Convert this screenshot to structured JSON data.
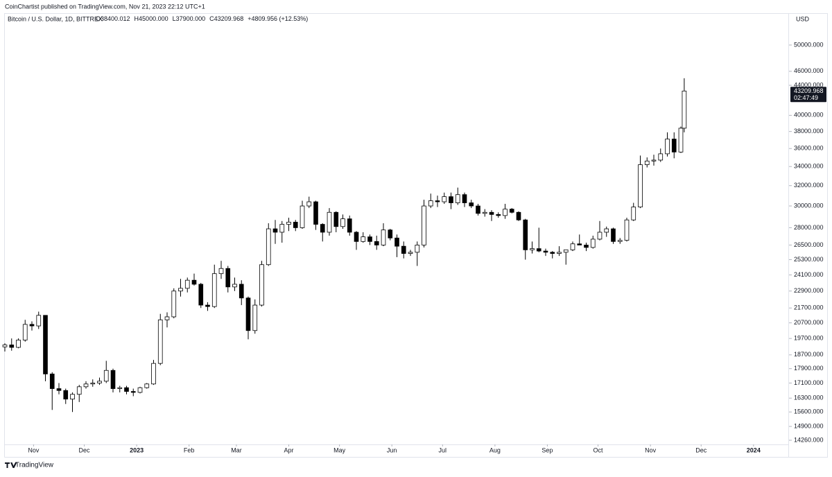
{
  "chart_data": {
    "type": "candlestick",
    "published": "CoinChartist published on TradingView.com, Nov 21, 2023 22:12 UTC+1",
    "title": "Bitcoin / U.S. Dollar, 1D, BITTREX",
    "legend_values": [
      "O38400.012",
      "H45000.000",
      "L37900.000",
      "C43209.968",
      "+4809.956 (+12.53%)"
    ],
    "currency": "USD",
    "countdown": "02:47:49",
    "brand": "TradingView",
    "log_scale": true,
    "grid": false,
    "up_color": "#ffffff",
    "down_color": "#000000",
    "border_color": "#000000",
    "ylim": [
      14073,
      55200
    ],
    "yticks": [
      {
        "value": 50000,
        "label": "50000.000"
      },
      {
        "value": 46000,
        "label": "46000.000"
      },
      {
        "value": 44000,
        "label": "44000.000"
      },
      {
        "value": 40000,
        "label": "40000.000"
      },
      {
        "value": 38000,
        "label": "38000.000"
      },
      {
        "value": 36000,
        "label": "36000.000"
      },
      {
        "value": 34000,
        "label": "34000.000"
      },
      {
        "value": 32000,
        "label": "32000.000"
      },
      {
        "value": 30000,
        "label": "30000.000"
      },
      {
        "value": 28000,
        "label": "28000.000"
      },
      {
        "value": 26500,
        "label": "26500.000"
      },
      {
        "value": 25300,
        "label": "25300.000"
      },
      {
        "value": 24100,
        "label": "24100.000"
      },
      {
        "value": 22900,
        "label": "22900.000"
      },
      {
        "value": 21700,
        "label": "21700.000"
      },
      {
        "value": 20700,
        "label": "20700.000"
      },
      {
        "value": 19700,
        "label": "19700.000"
      },
      {
        "value": 18700,
        "label": "18700.000"
      },
      {
        "value": 17900,
        "label": "17900.000"
      },
      {
        "value": 17100,
        "label": "17100.000"
      },
      {
        "value": 16300,
        "label": "16300.000"
      },
      {
        "value": 15600,
        "label": "15600.000"
      },
      {
        "value": 14900,
        "label": "14900.000"
      },
      {
        "value": 14260,
        "label": "14260.000"
      }
    ],
    "xlim": [
      "2022-10-15",
      "2024-01-22"
    ],
    "xticks": [
      {
        "value": "2022-11-01",
        "label": "Nov"
      },
      {
        "value": "2022-12-01",
        "label": "Dec"
      },
      {
        "value": "2023-01-01",
        "label": "2023"
      },
      {
        "value": "2023-02-01",
        "label": "Feb"
      },
      {
        "value": "2023-03-01",
        "label": "Mar"
      },
      {
        "value": "2023-04-01",
        "label": "Apr"
      },
      {
        "value": "2023-05-01",
        "label": "May"
      },
      {
        "value": "2023-06-01",
        "label": "Jun"
      },
      {
        "value": "2023-07-01",
        "label": "Jul"
      },
      {
        "value": "2023-08-01",
        "label": "Aug"
      },
      {
        "value": "2023-09-01",
        "label": "Sep"
      },
      {
        "value": "2023-10-01",
        "label": "Oct"
      },
      {
        "value": "2023-11-01",
        "label": "Nov"
      },
      {
        "value": "2023-12-01",
        "label": "Dec"
      },
      {
        "value": "2024-01-01",
        "label": "2024"
      }
    ],
    "x": [
      "2022-10-15",
      "2022-10-19",
      "2022-10-23",
      "2022-10-27",
      "2022-10-31",
      "2022-11-04",
      "2022-11-08",
      "2022-11-12",
      "2022-11-16",
      "2022-11-20",
      "2022-11-24",
      "2022-11-28",
      "2022-12-02",
      "2022-12-06",
      "2022-12-10",
      "2022-12-14",
      "2022-12-18",
      "2022-12-22",
      "2022-12-26",
      "2022-12-30",
      "2023-01-03",
      "2023-01-07",
      "2023-01-11",
      "2023-01-15",
      "2023-01-19",
      "2023-01-23",
      "2023-01-27",
      "2023-01-31",
      "2023-02-04",
      "2023-02-08",
      "2023-02-12",
      "2023-02-16",
      "2023-02-20",
      "2023-02-24",
      "2023-02-28",
      "2023-03-04",
      "2023-03-08",
      "2023-03-12",
      "2023-03-16",
      "2023-03-20",
      "2023-03-24",
      "2023-03-28",
      "2023-04-01",
      "2023-04-05",
      "2023-04-09",
      "2023-04-13",
      "2023-04-17",
      "2023-04-21",
      "2023-04-25",
      "2023-04-29",
      "2023-05-03",
      "2023-05-07",
      "2023-05-11",
      "2023-05-15",
      "2023-05-19",
      "2023-05-23",
      "2023-05-27",
      "2023-05-31",
      "2023-06-04",
      "2023-06-08",
      "2023-06-12",
      "2023-06-16",
      "2023-06-20",
      "2023-06-24",
      "2023-06-28",
      "2023-07-02",
      "2023-07-06",
      "2023-07-10",
      "2023-07-14",
      "2023-07-18",
      "2023-07-22",
      "2023-07-26",
      "2023-07-30",
      "2023-08-03",
      "2023-08-07",
      "2023-08-11",
      "2023-08-15",
      "2023-08-19",
      "2023-08-23",
      "2023-08-27",
      "2023-08-31",
      "2023-09-04",
      "2023-09-08",
      "2023-09-12",
      "2023-09-16",
      "2023-09-20",
      "2023-09-24",
      "2023-09-28",
      "2023-10-02",
      "2023-10-06",
      "2023-10-10",
      "2023-10-14",
      "2023-10-18",
      "2023-10-22",
      "2023-10-26",
      "2023-10-30",
      "2023-11-03",
      "2023-11-07",
      "2023-11-11",
      "2023-11-15",
      "2023-11-19",
      "2023-11-21"
    ],
    "ohlc": [
      [
        19180,
        19400,
        18900,
        19300
      ],
      [
        19300,
        19700,
        18950,
        19150
      ],
      [
        19150,
        19700,
        19100,
        19600
      ],
      [
        19600,
        20900,
        19500,
        20600
      ],
      [
        20600,
        20800,
        20200,
        20500
      ],
      [
        20500,
        21450,
        20300,
        21200
      ],
      [
        21200,
        21200,
        17200,
        17600
      ],
      [
        17600,
        17700,
        15700,
        16800
      ],
      [
        16800,
        17100,
        16500,
        16700
      ],
      [
        16700,
        16800,
        16000,
        16250
      ],
      [
        16250,
        16600,
        15600,
        16500
      ],
      [
        16500,
        17000,
        16100,
        16900
      ],
      [
        16900,
        17200,
        16800,
        17050
      ],
      [
        17050,
        17300,
        16900,
        17100
      ],
      [
        17100,
        17400,
        17000,
        17200
      ],
      [
        17200,
        18350,
        17100,
        17800
      ],
      [
        17800,
        17900,
        16600,
        16800
      ],
      [
        16800,
        16950,
        16600,
        16850
      ],
      [
        16850,
        16950,
        16500,
        16650
      ],
      [
        16650,
        16800,
        16400,
        16600
      ],
      [
        16600,
        16900,
        16550,
        16850
      ],
      [
        16850,
        17100,
        16800,
        17050
      ],
      [
        17050,
        18400,
        17000,
        18200
      ],
      [
        18200,
        21300,
        18100,
        20900
      ],
      [
        20900,
        21400,
        20400,
        21100
      ],
      [
        21100,
        23100,
        21000,
        22900
      ],
      [
        22900,
        23800,
        22500,
        23100
      ],
      [
        23100,
        23900,
        22800,
        23700
      ],
      [
        23700,
        24200,
        23300,
        23400
      ],
      [
        23400,
        23500,
        21700,
        21900
      ],
      [
        21900,
        22100,
        21500,
        21800
      ],
      [
        21800,
        24900,
        21700,
        24200
      ],
      [
        24200,
        25200,
        23800,
        24600
      ],
      [
        24600,
        24800,
        22800,
        23200
      ],
      [
        23200,
        23900,
        22900,
        23400
      ],
      [
        23400,
        23700,
        21900,
        22400
      ],
      [
        22400,
        22500,
        19650,
        20200
      ],
      [
        20200,
        22300,
        20000,
        21900
      ],
      [
        21900,
        25200,
        21800,
        24900
      ],
      [
        24900,
        28400,
        24800,
        27900
      ],
      [
        27900,
        28700,
        26600,
        27600
      ],
      [
        27600,
        28600,
        26700,
        28300
      ],
      [
        28300,
        28900,
        27700,
        28500
      ],
      [
        28500,
        28700,
        27700,
        28000
      ],
      [
        28000,
        30500,
        27900,
        30000
      ],
      [
        30000,
        30900,
        29800,
        30400
      ],
      [
        30400,
        30500,
        27800,
        28300
      ],
      [
        28300,
        28400,
        26800,
        27600
      ],
      [
        27600,
        29800,
        27300,
        29400
      ],
      [
        29400,
        29500,
        27600,
        28100
      ],
      [
        28100,
        29200,
        27900,
        28800
      ],
      [
        28800,
        29100,
        27300,
        27600
      ],
      [
        27600,
        27700,
        26100,
        26800
      ],
      [
        26800,
        27600,
        26700,
        27200
      ],
      [
        27200,
        27400,
        26500,
        26800
      ],
      [
        26800,
        27300,
        26100,
        26500
      ],
      [
        26500,
        28400,
        26400,
        27800
      ],
      [
        27800,
        27900,
        26900,
        27100
      ],
      [
        27100,
        27400,
        25500,
        26400
      ],
      [
        26400,
        26800,
        25400,
        25800
      ],
      [
        25800,
        26100,
        25600,
        25900
      ],
      [
        25900,
        26800,
        24800,
        26500
      ],
      [
        26500,
        30600,
        26300,
        30000
      ],
      [
        30000,
        31200,
        29800,
        30500
      ],
      [
        30500,
        31000,
        29900,
        30400
      ],
      [
        30400,
        31300,
        30200,
        30900
      ],
      [
        30900,
        31300,
        29700,
        30300
      ],
      [
        30300,
        31800,
        30100,
        31100
      ],
      [
        31100,
        31300,
        29900,
        30300
      ],
      [
        30300,
        30600,
        29800,
        30000
      ],
      [
        30000,
        30200,
        29100,
        29300
      ],
      [
        29300,
        29700,
        29000,
        29400
      ],
      [
        29400,
        29600,
        28600,
        29200
      ],
      [
        29200,
        29400,
        28900,
        29100
      ],
      [
        29100,
        30200,
        28800,
        29700
      ],
      [
        29700,
        29800,
        29300,
        29400
      ],
      [
        29400,
        29500,
        28600,
        28700
      ],
      [
        28700,
        28800,
        25300,
        26100
      ],
      [
        26100,
        26800,
        25800,
        26200
      ],
      [
        26200,
        28000,
        25900,
        26000
      ],
      [
        26000,
        26200,
        25600,
        25900
      ],
      [
        25900,
        26000,
        25400,
        25800
      ],
      [
        25800,
        26400,
        25600,
        25900
      ],
      [
        25900,
        26100,
        24900,
        26100
      ],
      [
        26100,
        26800,
        26000,
        26600
      ],
      [
        26600,
        27400,
        26500,
        26500
      ],
      [
        26500,
        26700,
        26000,
        26300
      ],
      [
        26300,
        27300,
        26200,
        27000
      ],
      [
        27000,
        28600,
        26900,
        27600
      ],
      [
        27600,
        28100,
        27200,
        27900
      ],
      [
        27900,
        28000,
        26600,
        26800
      ],
      [
        26800,
        27100,
        26600,
        26900
      ],
      [
        26900,
        28900,
        26800,
        28700
      ],
      [
        28700,
        30300,
        28600,
        29900
      ],
      [
        29900,
        35200,
        29800,
        34200
      ],
      [
        34200,
        35000,
        33900,
        34600
      ],
      [
        34600,
        35300,
        34100,
        34700
      ],
      [
        34700,
        36000,
        34500,
        35400
      ],
      [
        35400,
        37900,
        35100,
        37100
      ],
      [
        37100,
        37900,
        34900,
        35600
      ],
      [
        35600,
        38600,
        35500,
        38400
      ],
      [
        38400.012,
        45000,
        37900,
        43209.968
      ]
    ]
  }
}
